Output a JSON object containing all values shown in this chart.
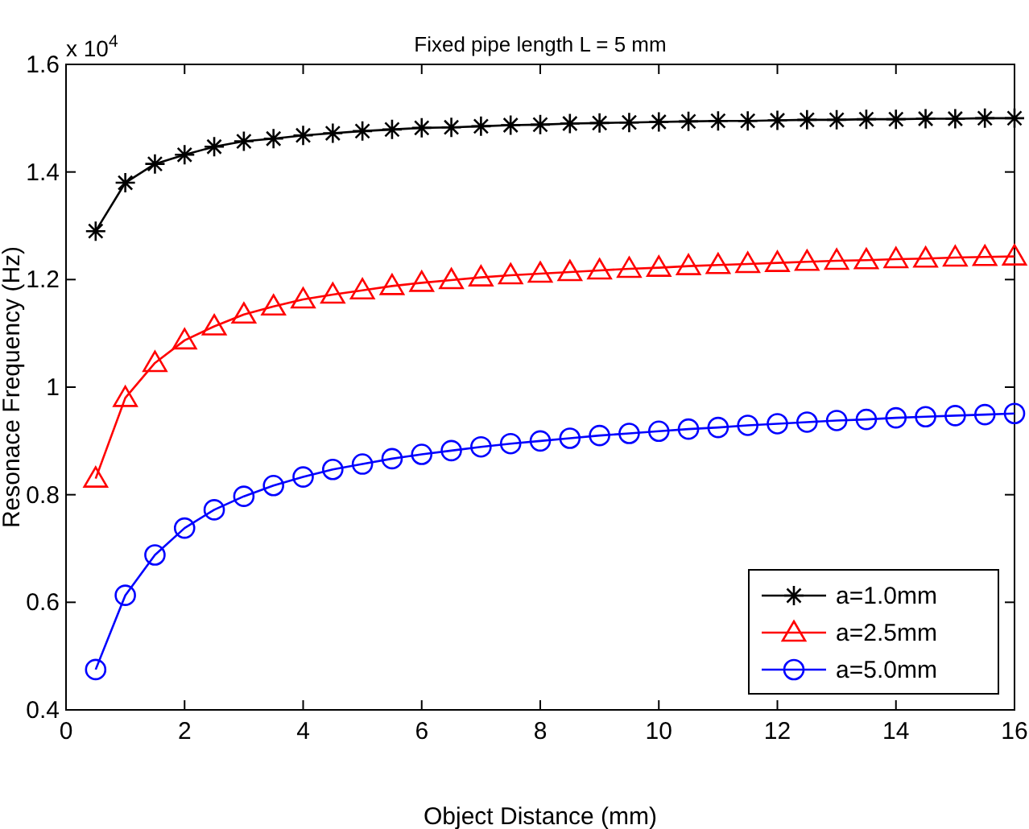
{
  "chart_data": {
    "type": "line",
    "title": "Fixed pipe length L = 5 mm",
    "xlabel": "Object Distance (mm)",
    "ylabel": "Resonace Frequency (Hz)",
    "annotations": [
      "x 10$^{4}$"
    ],
    "x": [
      0.5,
      1,
      1.5,
      2,
      2.5,
      3,
      3.5,
      4,
      4.5,
      5,
      5.5,
      6,
      6.5,
      7,
      7.5,
      8,
      8.5,
      9,
      9.5,
      10,
      10.5,
      11,
      11.5,
      12,
      12.5,
      13,
      13.5,
      14,
      14.5,
      15,
      15.5,
      16
    ],
    "series": [
      {
        "name": "a=1.0mm",
        "color": "#000000",
        "marker": "cross",
        "values": [
          1.29,
          1.38,
          1.415,
          1.432,
          1.447,
          1.457,
          1.462,
          1.468,
          1.472,
          1.476,
          1.479,
          1.482,
          1.483,
          1.485,
          1.487,
          1.488,
          1.49,
          1.491,
          1.492,
          1.493,
          1.494,
          1.495,
          1.495,
          1.496,
          1.497,
          1.497,
          1.498,
          1.498,
          1.499,
          1.499,
          1.5,
          1.5
        ]
      },
      {
        "name": "a=2.5mm",
        "color": "#ff0000",
        "marker": "triangle",
        "values": [
          0.83,
          0.98,
          1.045,
          1.087,
          1.113,
          1.135,
          1.15,
          1.163,
          1.172,
          1.18,
          1.188,
          1.194,
          1.199,
          1.204,
          1.208,
          1.211,
          1.214,
          1.217,
          1.22,
          1.222,
          1.225,
          1.227,
          1.229,
          1.231,
          1.233,
          1.235,
          1.236,
          1.238,
          1.239,
          1.241,
          1.242,
          1.243
        ]
      },
      {
        "name": "a=5.0mm",
        "color": "#0000ff",
        "marker": "circle",
        "values": [
          0.475,
          0.613,
          0.688,
          0.738,
          0.772,
          0.797,
          0.817,
          0.833,
          0.847,
          0.857,
          0.867,
          0.875,
          0.882,
          0.889,
          0.895,
          0.9,
          0.905,
          0.91,
          0.914,
          0.918,
          0.922,
          0.925,
          0.929,
          0.932,
          0.935,
          0.938,
          0.94,
          0.943,
          0.945,
          0.947,
          0.949,
          0.951
        ]
      }
    ],
    "xlim": [
      0,
      16
    ],
    "xticks": [
      0,
      2,
      4,
      6,
      8,
      10,
      12,
      14,
      16
    ],
    "ylim": [
      0.4,
      1.6
    ],
    "yticks": [
      0.4,
      0.6,
      0.8,
      1,
      1.2,
      1.4,
      1.6
    ],
    "grid": false,
    "legend": "bottom right",
    "line_style": "solid"
  }
}
